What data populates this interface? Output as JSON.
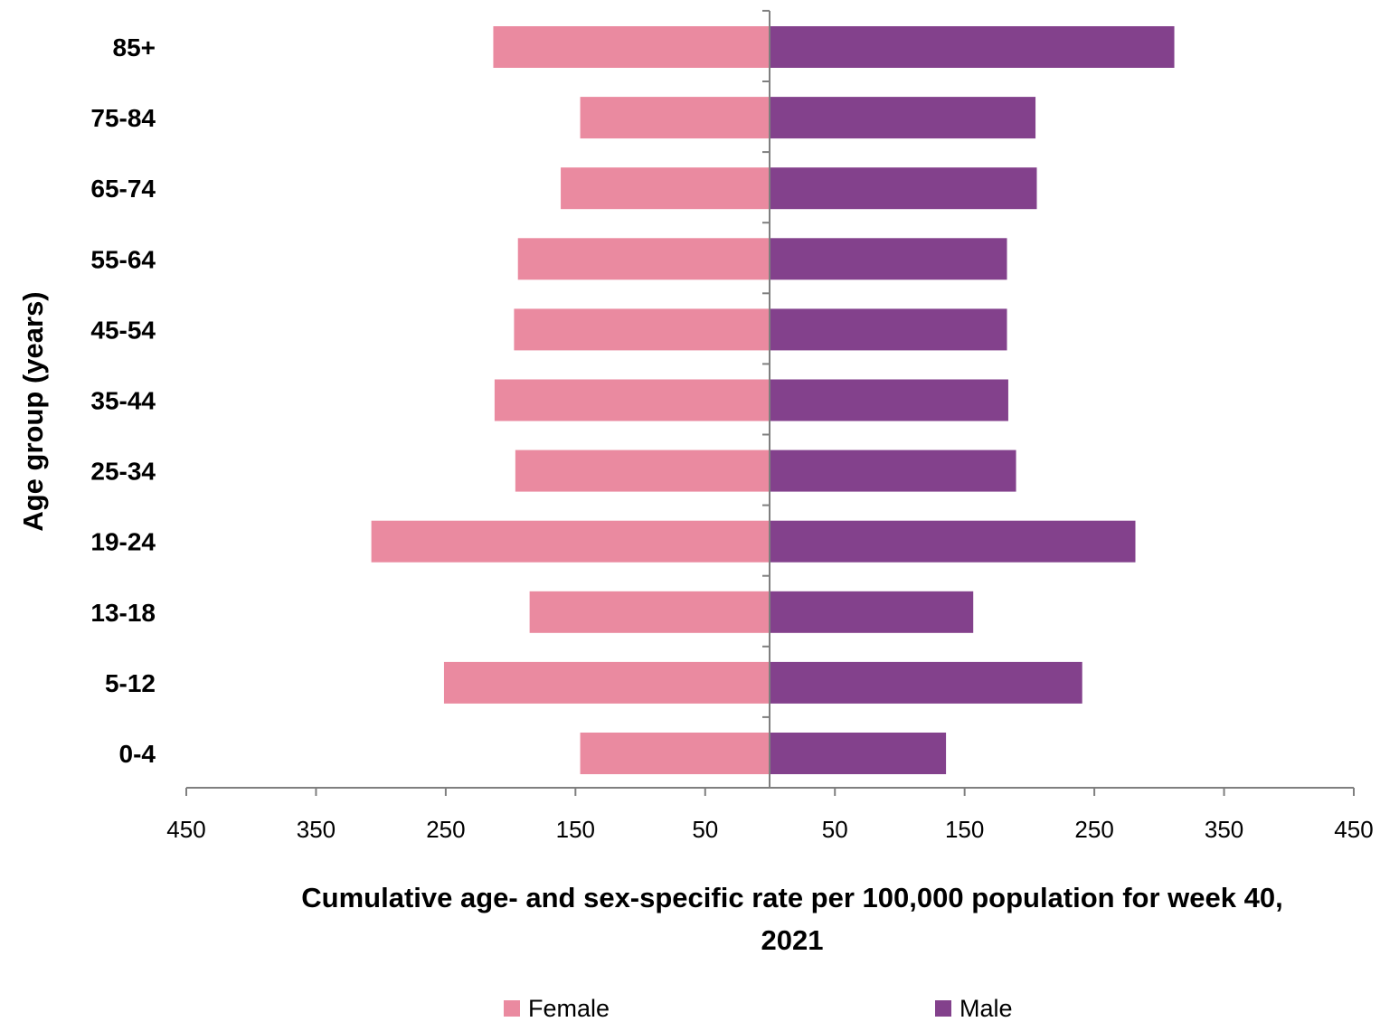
{
  "chart_data": {
    "type": "bar",
    "orientation": "horizontal",
    "layout": "population-pyramid",
    "categories": [
      "0-4",
      "5-12",
      "13-18",
      "19-24",
      "25-34",
      "35-44",
      "45-54",
      "55-64",
      "65-74",
      "75-84",
      "85+"
    ],
    "series": [
      {
        "name": "Female",
        "side": "left",
        "color": "#ea8aa0",
        "values": [
          146,
          251,
          185,
          307,
          196,
          212,
          197,
          194,
          161,
          146,
          213
        ]
      },
      {
        "name": "Male",
        "side": "right",
        "color": "#83418c",
        "values": [
          136,
          241,
          157,
          282,
          190,
          184,
          183,
          183,
          206,
          205,
          312
        ]
      }
    ],
    "xlim": [
      -450,
      450
    ],
    "x_ticks": [
      -450,
      -350,
      -250,
      -150,
      -50,
      50,
      150,
      250,
      350,
      450
    ],
    "x_tick_labels": [
      "450",
      "350",
      "250",
      "150",
      "50",
      "50",
      "150",
      "250",
      "350",
      "450"
    ],
    "xlabel": "Cumulative age- and sex-specific rate per 100,000 population for week 40, 2021",
    "xlabel_lines": [
      "Cumulative age- and sex-specific rate per 100,000 population for week 40,",
      "2021"
    ],
    "ylabel": "Age group (years)",
    "grid": false,
    "legend_position": "bottom",
    "axis_color": "#7f7f7f"
  }
}
